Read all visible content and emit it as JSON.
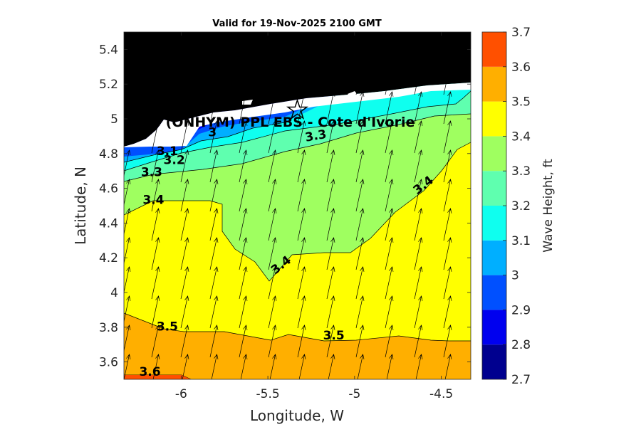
{
  "chart_data": {
    "type": "filled-contour",
    "title": "Valid for 19-Nov-2025 2100 GMT",
    "xlabel": "Longitude, W",
    "ylabel": "Latitude, N",
    "xlim": [
      -6.33,
      -4.33
    ],
    "ylim": [
      3.5,
      5.5
    ],
    "xticks": [
      -6,
      -5.5,
      -5,
      -4.5
    ],
    "xtick_labels": [
      "-6",
      "-5.5",
      "-5",
      "-4.5"
    ],
    "yticks": [
      3.6,
      3.8,
      4.0,
      4.2,
      4.4,
      4.6,
      4.8,
      5.0,
      5.2,
      5.4
    ],
    "ytick_labels": [
      "3.6",
      "3.8",
      "4",
      "4.2",
      "4.4",
      "4.6",
      "4.8",
      "5",
      "5.2",
      "5.4"
    ],
    "site_label": "(ONHYM) PPL EBS - Cote d'Ivorie",
    "site_marker": {
      "lon": -5.33,
      "lat": 5.05,
      "symbol": "star"
    },
    "colorbar": {
      "label": "Wave Height, ft",
      "levels": [
        2.7,
        2.8,
        2.9,
        3.0,
        3.1,
        3.2,
        3.3,
        3.4,
        3.5,
        3.6,
        3.7
      ],
      "tick_labels": [
        "2.7",
        "2.8",
        "2.9",
        "3",
        "3.1",
        "3.2",
        "3.3",
        "3.4",
        "3.5",
        "3.6",
        "3.7"
      ],
      "colors": [
        "#00008f",
        "#0000ef",
        "#0050ff",
        "#00afff",
        "#0fffef",
        "#5fffaf",
        "#9fff60",
        "#ffff00",
        "#ffaf00",
        "#ff5000"
      ]
    },
    "contour_labels": [
      {
        "text": "3",
        "lon": -5.82,
        "lat": 4.9,
        "angle": 0
      },
      {
        "text": "3.1",
        "lon": -6.08,
        "lat": 4.79,
        "angle": 0
      },
      {
        "text": "3.2",
        "lon": -6.04,
        "lat": 4.74,
        "angle": 0
      },
      {
        "text": "3.3",
        "lon": -6.17,
        "lat": 4.67,
        "angle": 0
      },
      {
        "text": "3.3",
        "lon": -5.22,
        "lat": 4.88,
        "angle": -10
      },
      {
        "text": "3.4",
        "lon": -6.16,
        "lat": 4.51,
        "angle": 0
      },
      {
        "text": "3.4",
        "lon": -5.41,
        "lat": 4.14,
        "angle": -38
      },
      {
        "text": "3.4",
        "lon": -4.59,
        "lat": 4.6,
        "angle": -38
      },
      {
        "text": "3.5",
        "lon": -6.08,
        "lat": 3.78,
        "angle": 0
      },
      {
        "text": "3.5",
        "lon": -5.12,
        "lat": 3.73,
        "angle": 0
      },
      {
        "text": "3.6",
        "lon": -6.18,
        "lat": 3.52,
        "angle": 0
      }
    ],
    "wave_direction": {
      "description": "arrows point toward north-northeast",
      "direction_deg": 12
    },
    "land_color": "#000000"
  }
}
